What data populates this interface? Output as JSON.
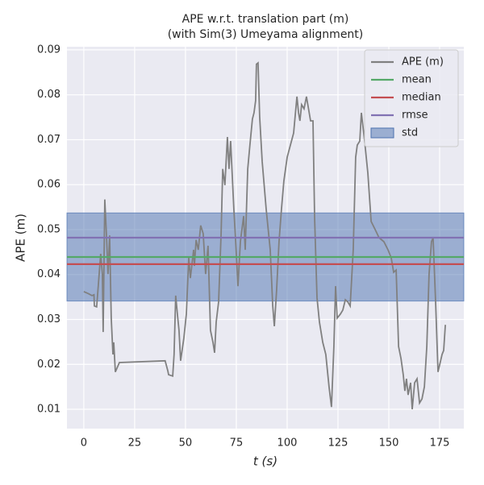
{
  "chart_data": {
    "type": "line",
    "title": [
      "APE w.r.t. translation part (m)",
      "(with Sim(3) Umeyama alignment)"
    ],
    "xlabel": "t (s)",
    "ylabel": "APE (m)",
    "xlim": [
      -8.3,
      186.9
    ],
    "ylim": [
      0.0057,
      0.0907
    ],
    "xticks": [
      0,
      25,
      50,
      75,
      100,
      125,
      150,
      175
    ],
    "yticks": [
      0.01,
      0.02,
      0.03,
      0.04,
      0.05,
      0.06,
      0.07,
      0.08,
      0.09
    ],
    "grid": true,
    "legend": "upper right",
    "x": [
      0,
      2.4,
      4,
      5,
      5.2,
      6.3,
      7.1,
      8.3,
      9.1,
      9.5,
      10.3,
      11.1,
      11.9,
      12.7,
      13.5,
      14.3,
      14.7,
      15.5,
      17.5,
      40,
      41.3,
      41.7,
      43.7,
      44.4,
      45.2,
      46,
      46.8,
      47.6,
      49.2,
      50.4,
      51.6,
      52.4,
      54,
      54.4,
      55.2,
      56.3,
      57.5,
      58.7,
      59.9,
      61.1,
      62.3,
      63.5,
      64.3,
      65.1,
      66.3,
      67.5,
      68.3,
      69.4,
      70.6,
      71.4,
      72.2,
      73.8,
      74.6,
      75.8,
      77,
      78.6,
      79.4,
      80.6,
      81.7,
      82.9,
      83.7,
      84.5,
      84.9,
      85.7,
      86.5,
      87.7,
      89.7,
      91.7,
      92.9,
      93.7,
      94.8,
      96,
      97.2,
      98.4,
      100,
      101.6,
      103.2,
      104.8,
      105.6,
      106.3,
      107.1,
      108.3,
      109.5,
      111.5,
      112.7,
      113.5,
      114.7,
      115.9,
      117.5,
      119,
      119.8,
      120.6,
      121.8,
      123,
      123.8,
      124.6,
      126.2,
      127.4,
      128.6,
      129.8,
      131,
      132.5,
      133.7,
      134.5,
      135.7,
      136.5,
      138.1,
      139.7,
      141.3,
      143.3,
      145.2,
      147.6,
      149.6,
      151.2,
      152.4,
      153.6,
      154.8,
      156,
      157.1,
      157.9,
      158.7,
      159.5,
      160.7,
      161.5,
      162.7,
      163.9,
      165.1,
      166.3,
      167.5,
      168.7,
      169.8,
      171,
      171.8,
      173,
      174.2,
      176.2,
      177,
      177.8
    ],
    "series": [
      {
        "name": "APE (m)",
        "color": "#808080",
        "values": [
          0.0362,
          0.0357,
          0.0353,
          0.0355,
          0.033,
          0.0328,
          0.0374,
          0.0446,
          0.0401,
          0.0272,
          0.0567,
          0.0491,
          0.0401,
          0.0487,
          0.0303,
          0.0222,
          0.0249,
          0.0183,
          0.0204,
          0.0208,
          0.0186,
          0.0177,
          0.0174,
          0.0222,
          0.0353,
          0.0312,
          0.0276,
          0.0208,
          0.0258,
          0.0312,
          0.0437,
          0.0392,
          0.0455,
          0.0419,
          0.0477,
          0.0455,
          0.0509,
          0.0491,
          0.0401,
          0.0464,
          0.0276,
          0.0249,
          0.0226,
          0.0294,
          0.0339,
          0.0491,
          0.0635,
          0.0599,
          0.0706,
          0.0635,
          0.0697,
          0.0545,
          0.0482,
          0.0374,
          0.0473,
          0.053,
          0.0455,
          0.0635,
          0.0688,
          0.0746,
          0.076,
          0.0787,
          0.0868,
          0.0871,
          0.0751,
          0.0652,
          0.0545,
          0.0455,
          0.033,
          0.0285,
          0.0365,
          0.0473,
          0.0545,
          0.0608,
          0.0661,
          0.0688,
          0.0715,
          0.0796,
          0.076,
          0.0742,
          0.0778,
          0.0769,
          0.0796,
          0.0742,
          0.0742,
          0.0527,
          0.0348,
          0.0294,
          0.0249,
          0.0222,
          0.0186,
          0.015,
          0.0105,
          0.024,
          0.0374,
          0.0303,
          0.0312,
          0.0321,
          0.0344,
          0.0339,
          0.033,
          0.0455,
          0.0661,
          0.0688,
          0.0697,
          0.076,
          0.0697,
          0.0626,
          0.0518,
          0.05,
          0.0482,
          0.0473,
          0.0455,
          0.0437,
          0.0405,
          0.041,
          0.024,
          0.0213,
          0.0177,
          0.0141,
          0.0168,
          0.0132,
          0.0159,
          0.01,
          0.0159,
          0.0168,
          0.0114,
          0.0123,
          0.015,
          0.024,
          0.0401,
          0.0473,
          0.0482,
          0.0339,
          0.0183,
          0.0222,
          0.0231,
          0.0288
        ]
      }
    ],
    "reference_lines": [
      {
        "name": "mean",
        "color": "#55a868",
        "value": 0.0439
      },
      {
        "name": "median",
        "color": "#c44e52",
        "value": 0.0423
      },
      {
        "name": "rmse",
        "color": "#8172b3",
        "value": 0.0482
      }
    ],
    "std_band": {
      "name": "std",
      "color": "#4c72b0",
      "value": 0.0098
    }
  }
}
